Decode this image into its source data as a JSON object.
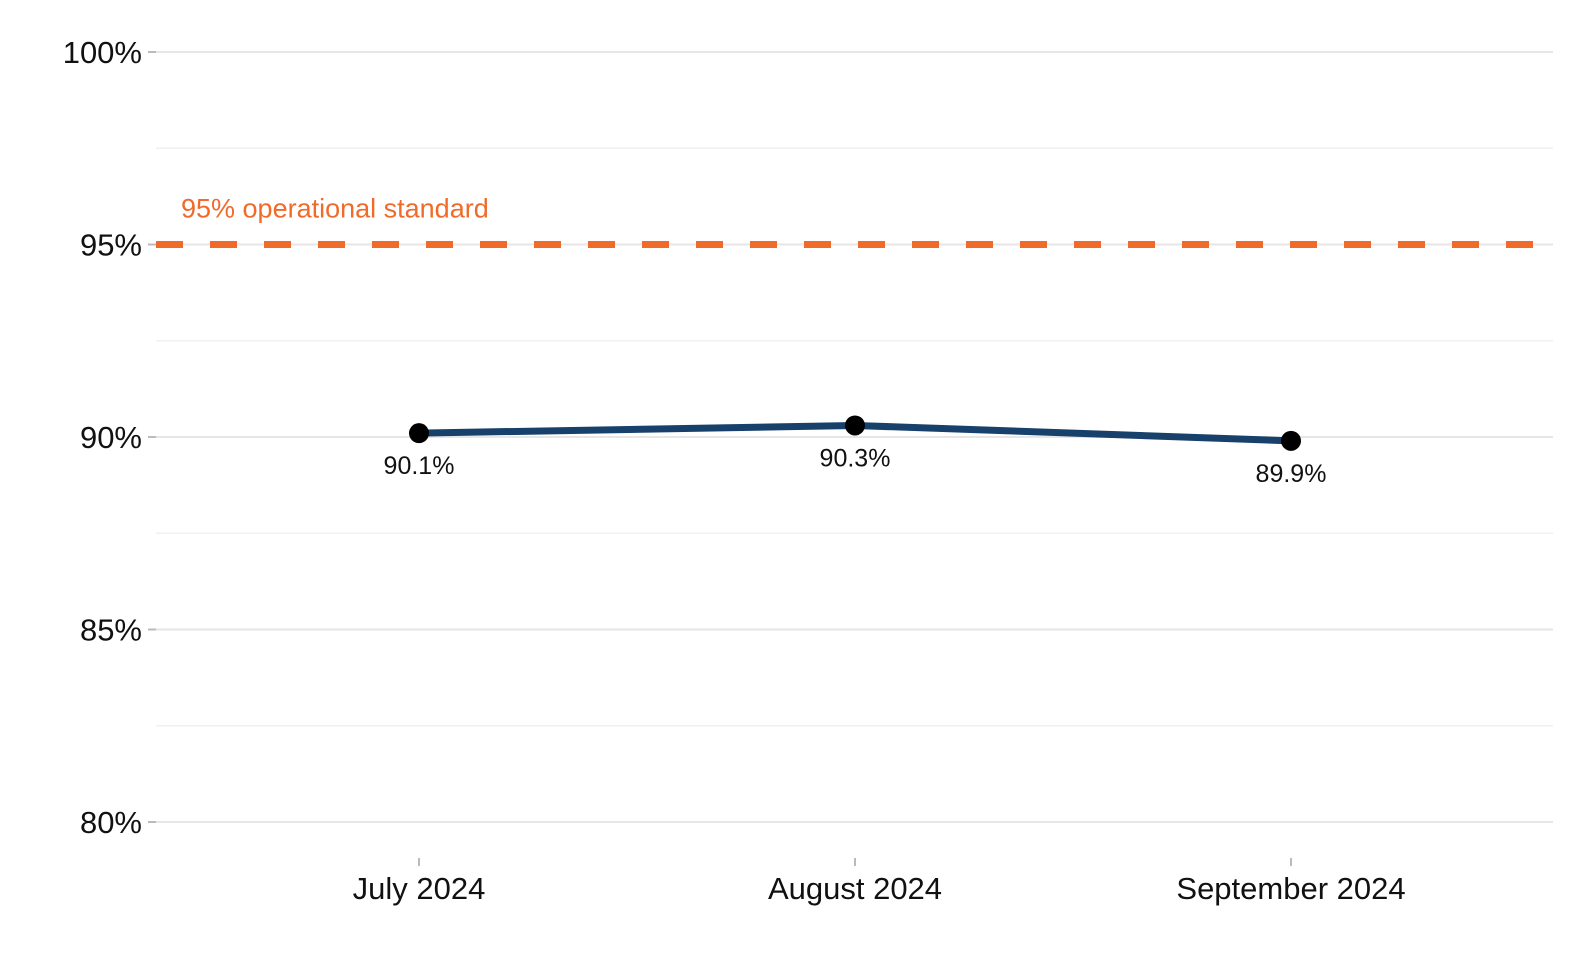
{
  "chart_data": {
    "type": "line",
    "categories": [
      "July 2024",
      "August 2024",
      "September 2024"
    ],
    "series": [
      {
        "values": [
          90.1,
          90.3,
          89.9
        ],
        "labels": [
          "90.1%",
          "90.3%",
          "89.9%"
        ]
      }
    ],
    "y_ticks": [
      80,
      85,
      90,
      95,
      100
    ],
    "y_tick_labels": [
      "80%",
      "85%",
      "90%",
      "95%",
      "100%"
    ],
    "ylim": [
      80,
      100
    ],
    "grid": true,
    "reference_line": {
      "value": 95,
      "label": "95% operational standard"
    },
    "colors": {
      "line": "#17406a",
      "marker": "#000000",
      "reference": "#f06b2a",
      "grid": "#e6e6e6"
    }
  }
}
